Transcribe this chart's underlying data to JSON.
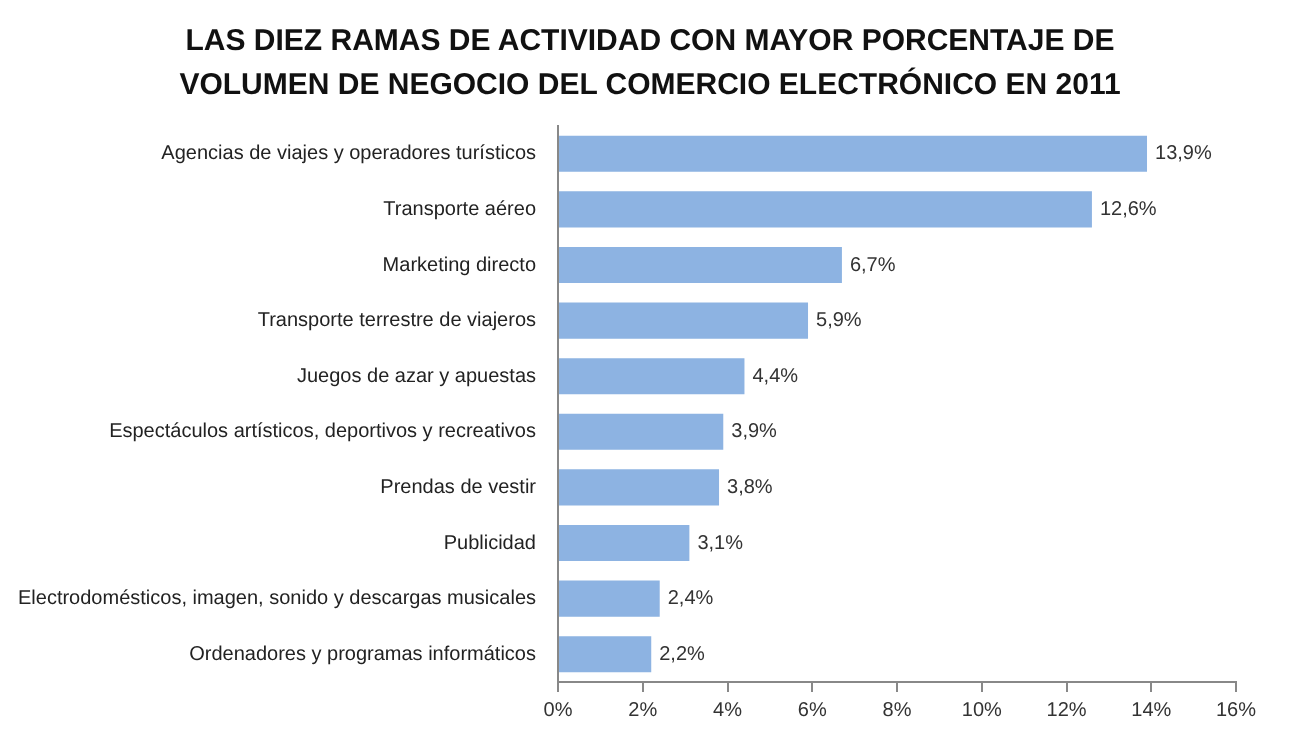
{
  "chart_data": {
    "type": "bar",
    "orientation": "horizontal",
    "title": "LAS DIEZ RAMAS DE ACTIVIDAD CON MAYOR PORCENTAJE DE VOLUMEN DE NEGOCIO DEL COMERCIO ELECTRÓNICO EN 2011",
    "categories": [
      "Agencias de viajes y operadores turísticos",
      "Transporte aéreo",
      "Marketing directo",
      "Transporte terrestre de viajeros",
      "Juegos de azar y apuestas",
      "Espectáculos artísticos, deportivos y recreativos",
      "Prendas de vestir",
      "Publicidad",
      "Electrodomésticos, imagen, sonido y descargas musicales",
      "Ordenadores y programas informáticos"
    ],
    "values": [
      13.9,
      12.6,
      6.7,
      5.9,
      4.4,
      3.9,
      3.8,
      3.1,
      2.4,
      2.2
    ],
    "value_labels": [
      "13,9%",
      "12,6%",
      "6,7%",
      "5,9%",
      "4,4%",
      "3,9%",
      "3,8%",
      "3,1%",
      "2,4%",
      "2,2%"
    ],
    "color": "#8db3e2",
    "xlim": [
      0,
      16
    ],
    "xticks": [
      {
        "value": 0,
        "label": "0%"
      },
      {
        "value": 2,
        "label": "2%"
      },
      {
        "value": 4,
        "label": "4%"
      },
      {
        "value": 6,
        "label": "6%"
      },
      {
        "value": 8,
        "label": "8%"
      },
      {
        "value": 10,
        "label": "10%"
      },
      {
        "value": 12,
        "label": "12%"
      },
      {
        "value": 14,
        "label": "14%"
      },
      {
        "value": 16,
        "label": "16%"
      }
    ]
  }
}
